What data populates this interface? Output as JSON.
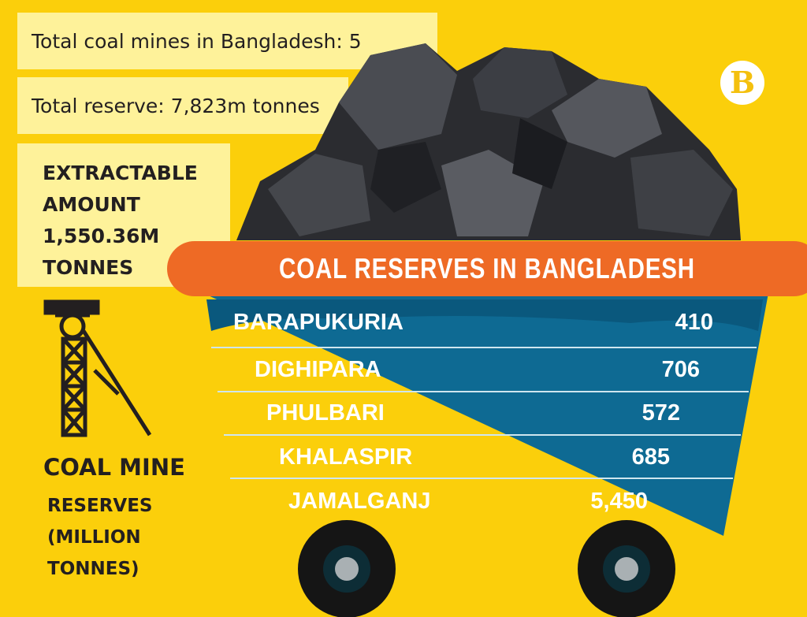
{
  "facts": {
    "total_mines": "Total coal mines in Bangladesh: 5",
    "total_reserve": "Total reserve: 7,823m tonnes",
    "extractable": "EXTRACTABLE AMOUNT 1,550.36M TONNES"
  },
  "legend": {
    "icon": "coal-mine-tower-icon",
    "title": "COAL MINE",
    "subtitle": "RESERVES (MILLION TONNES)"
  },
  "logo": {
    "letter": "B"
  },
  "colors": {
    "background": "#FBCF0B",
    "box": "#FEF29A",
    "banner": "#EE6A25",
    "cart": "#0E6A93"
  },
  "chart_data": {
    "type": "table",
    "title": "COAL RESERVES IN BANGLADESH",
    "columns": [
      "COAL MINE",
      "RESERVES (MILLION TONNES)"
    ],
    "rows": [
      {
        "name": "BARAPUKURIA",
        "value": "410"
      },
      {
        "name": "DIGHIPARA",
        "value": "706"
      },
      {
        "name": "PHULBARI",
        "value": "572"
      },
      {
        "name": "KHALASPIR",
        "value": "685"
      },
      {
        "name": "JAMALGANJ",
        "value": "5,450"
      }
    ]
  }
}
